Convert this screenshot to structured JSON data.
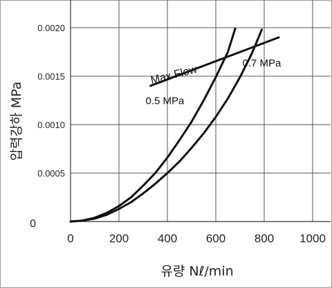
{
  "chart_data": {
    "type": "line",
    "title": "",
    "xlabel": "유량 Nℓ/min",
    "ylabel": "압력강하 MPa",
    "xlim": [
      0,
      1000
    ],
    "ylim": [
      0,
      0.002
    ],
    "grid": true,
    "x_ticks": [
      "0",
      "200",
      "400",
      "600",
      "800",
      "1000"
    ],
    "y_ticks": [
      "0",
      "0.0005",
      "0.0010",
      "0.0015",
      "0.0020"
    ],
    "series": [
      {
        "name": "0.5 MPa",
        "x": [
          0,
          50,
          100,
          150,
          200,
          250,
          300,
          350,
          400,
          450,
          500,
          550,
          600,
          650,
          680
        ],
        "y": [
          0,
          1e-05,
          4e-05,
          9e-05,
          0.00016,
          0.00025,
          0.00037,
          0.0005,
          0.00066,
          0.00084,
          0.00103,
          0.00125,
          0.00149,
          0.00175,
          0.00199
        ]
      },
      {
        "name": "0.7 MPa",
        "x": [
          0,
          50,
          100,
          150,
          200,
          250,
          300,
          350,
          400,
          450,
          500,
          550,
          600,
          650,
          700,
          750,
          790
        ],
        "y": [
          0,
          1e-05,
          3e-05,
          7e-05,
          0.00013,
          0.0002,
          0.00029,
          0.00039,
          0.0005,
          0.00062,
          0.00076,
          0.00091,
          0.00108,
          0.00127,
          0.00149,
          0.00174,
          0.00198
        ]
      },
      {
        "name": "Max Flow",
        "x": [
          330,
          860
        ],
        "y": [
          0.0014,
          0.0019
        ]
      }
    ],
    "annotations": [
      {
        "text": "Max Flow",
        "x": 430,
        "y": 0.00148
      },
      {
        "text": "0.7 MPa",
        "x": 710,
        "y": 0.0016
      },
      {
        "text": "0.5 MPa",
        "x": 310,
        "y": 0.00121
      }
    ]
  }
}
